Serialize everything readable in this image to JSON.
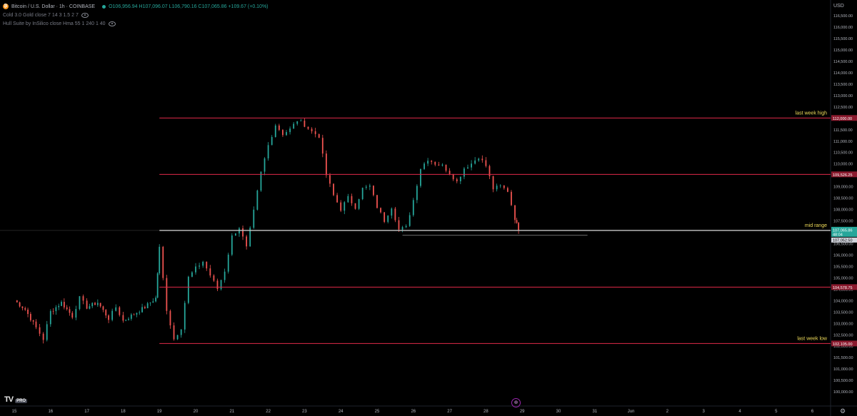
{
  "header": {
    "symbol": "Bitcoin / U.S. Dollar · 1h · COINBASE",
    "ohlc": "O106,956.94 H107,096.07 L106,790.16 C107,065.86 +109.67 (+0.10%)",
    "indicator_1": "Cold 3.0 Gold close 7 14 3 1.5 2 7",
    "indicator_2": "Hull Suite by InSilico close Hma 55 1 240 1 40"
  },
  "currency": "USD",
  "logo_text": "TV",
  "logo_badge": "PRO",
  "colors": {
    "background": "#000000",
    "up": "#26a69a",
    "down": "#ef5350",
    "level": "#e0294a",
    "mid": "#c8c8c8",
    "label": "#f0dc5a"
  },
  "chart_data": {
    "type": "candlestick",
    "y_ticks": [
      100000,
      100500,
      101000,
      101500,
      102000,
      102500,
      103000,
      103500,
      104000,
      104500,
      105000,
      105500,
      106000,
      106500,
      107000,
      107500,
      108000,
      108500,
      109000,
      109500,
      110000,
      110500,
      111000,
      111500,
      112000,
      112500,
      113000,
      113500,
      114000,
      114500,
      115000,
      115500,
      116000,
      116500
    ],
    "ylim": [
      99800,
      116800
    ],
    "x_labels": [
      "15",
      "16",
      "17",
      "18",
      "19",
      "20",
      "21",
      "22",
      "23",
      "24",
      "25",
      "26",
      "27",
      "28",
      "29",
      "30",
      "31",
      "Jun",
      "2",
      "3",
      "4",
      "5",
      "6"
    ],
    "levels": [
      {
        "price": 112000,
        "label": "last week high",
        "tag": "112,000.00",
        "color": "#e0294a",
        "from_day": 19
      },
      {
        "price": 109526.25,
        "label": "",
        "tag": "109,526.25",
        "color": "#e0294a",
        "from_day": 19
      },
      {
        "price": 107065.86,
        "label": "mid range",
        "tag": "107,065.86",
        "color": "#c8c8c8",
        "from_day": 19
      },
      {
        "price": 104578.75,
        "label": "",
        "tag": "104,578.75",
        "color": "#e0294a",
        "from_day": 19
      },
      {
        "price": 102105.0,
        "label": "last week low",
        "tag": "102,105.00",
        "color": "#e0294a",
        "from_day": 19
      }
    ],
    "current_price": "107,065.86",
    "countdown": "48:04",
    "support_tag": "107,052.50",
    "support_line": {
      "price": 106850,
      "from_day": 25.7,
      "to_day": 30.8
    },
    "price_path": [
      [
        15,
        104000
      ],
      [
        15.3,
        103600
      ],
      [
        15.6,
        102800
      ],
      [
        15.8,
        102300
      ],
      [
        16,
        103500
      ],
      [
        16.3,
        103900
      ],
      [
        16.6,
        103300
      ],
      [
        16.8,
        104100
      ],
      [
        17,
        103700
      ],
      [
        17.3,
        103900
      ],
      [
        17.6,
        103200
      ],
      [
        17.8,
        103700
      ],
      [
        18,
        103100
      ],
      [
        18.3,
        103400
      ],
      [
        18.6,
        103700
      ],
      [
        18.9,
        104100
      ],
      [
        19,
        106300
      ],
      [
        19.2,
        103600
      ],
      [
        19.4,
        102300
      ],
      [
        19.6,
        102800
      ],
      [
        19.8,
        105000
      ],
      [
        20,
        105400
      ],
      [
        20.2,
        105700
      ],
      [
        20.4,
        105100
      ],
      [
        20.6,
        104500
      ],
      [
        20.8,
        105300
      ],
      [
        21,
        106800
      ],
      [
        21.2,
        107200
      ],
      [
        21.4,
        106300
      ],
      [
        21.6,
        107900
      ],
      [
        21.8,
        109600
      ],
      [
        22,
        110800
      ],
      [
        22.2,
        111700
      ],
      [
        22.4,
        111300
      ],
      [
        22.6,
        111500
      ],
      [
        22.8,
        111900
      ],
      [
        23,
        111700
      ],
      [
        23.2,
        111400
      ],
      [
        23.4,
        111200
      ],
      [
        23.6,
        109500
      ],
      [
        23.8,
        108600
      ],
      [
        24,
        108000
      ],
      [
        24.2,
        108500
      ],
      [
        24.4,
        108100
      ],
      [
        24.6,
        108900
      ],
      [
        24.8,
        109000
      ],
      [
        25,
        108100
      ],
      [
        25.2,
        107500
      ],
      [
        25.4,
        108100
      ],
      [
        25.6,
        107100
      ],
      [
        25.8,
        107200
      ],
      [
        26,
        108400
      ],
      [
        26.2,
        109800
      ],
      [
        26.4,
        110200
      ],
      [
        26.6,
        110000
      ],
      [
        26.8,
        109900
      ],
      [
        27,
        109600
      ],
      [
        27.2,
        109200
      ],
      [
        27.4,
        109800
      ],
      [
        27.6,
        110000
      ],
      [
        27.8,
        110300
      ],
      [
        28,
        109900
      ],
      [
        28.2,
        108900
      ],
      [
        28.4,
        109000
      ],
      [
        28.6,
        108800
      ],
      [
        28.8,
        107600
      ],
      [
        28.9,
        107066
      ]
    ]
  }
}
